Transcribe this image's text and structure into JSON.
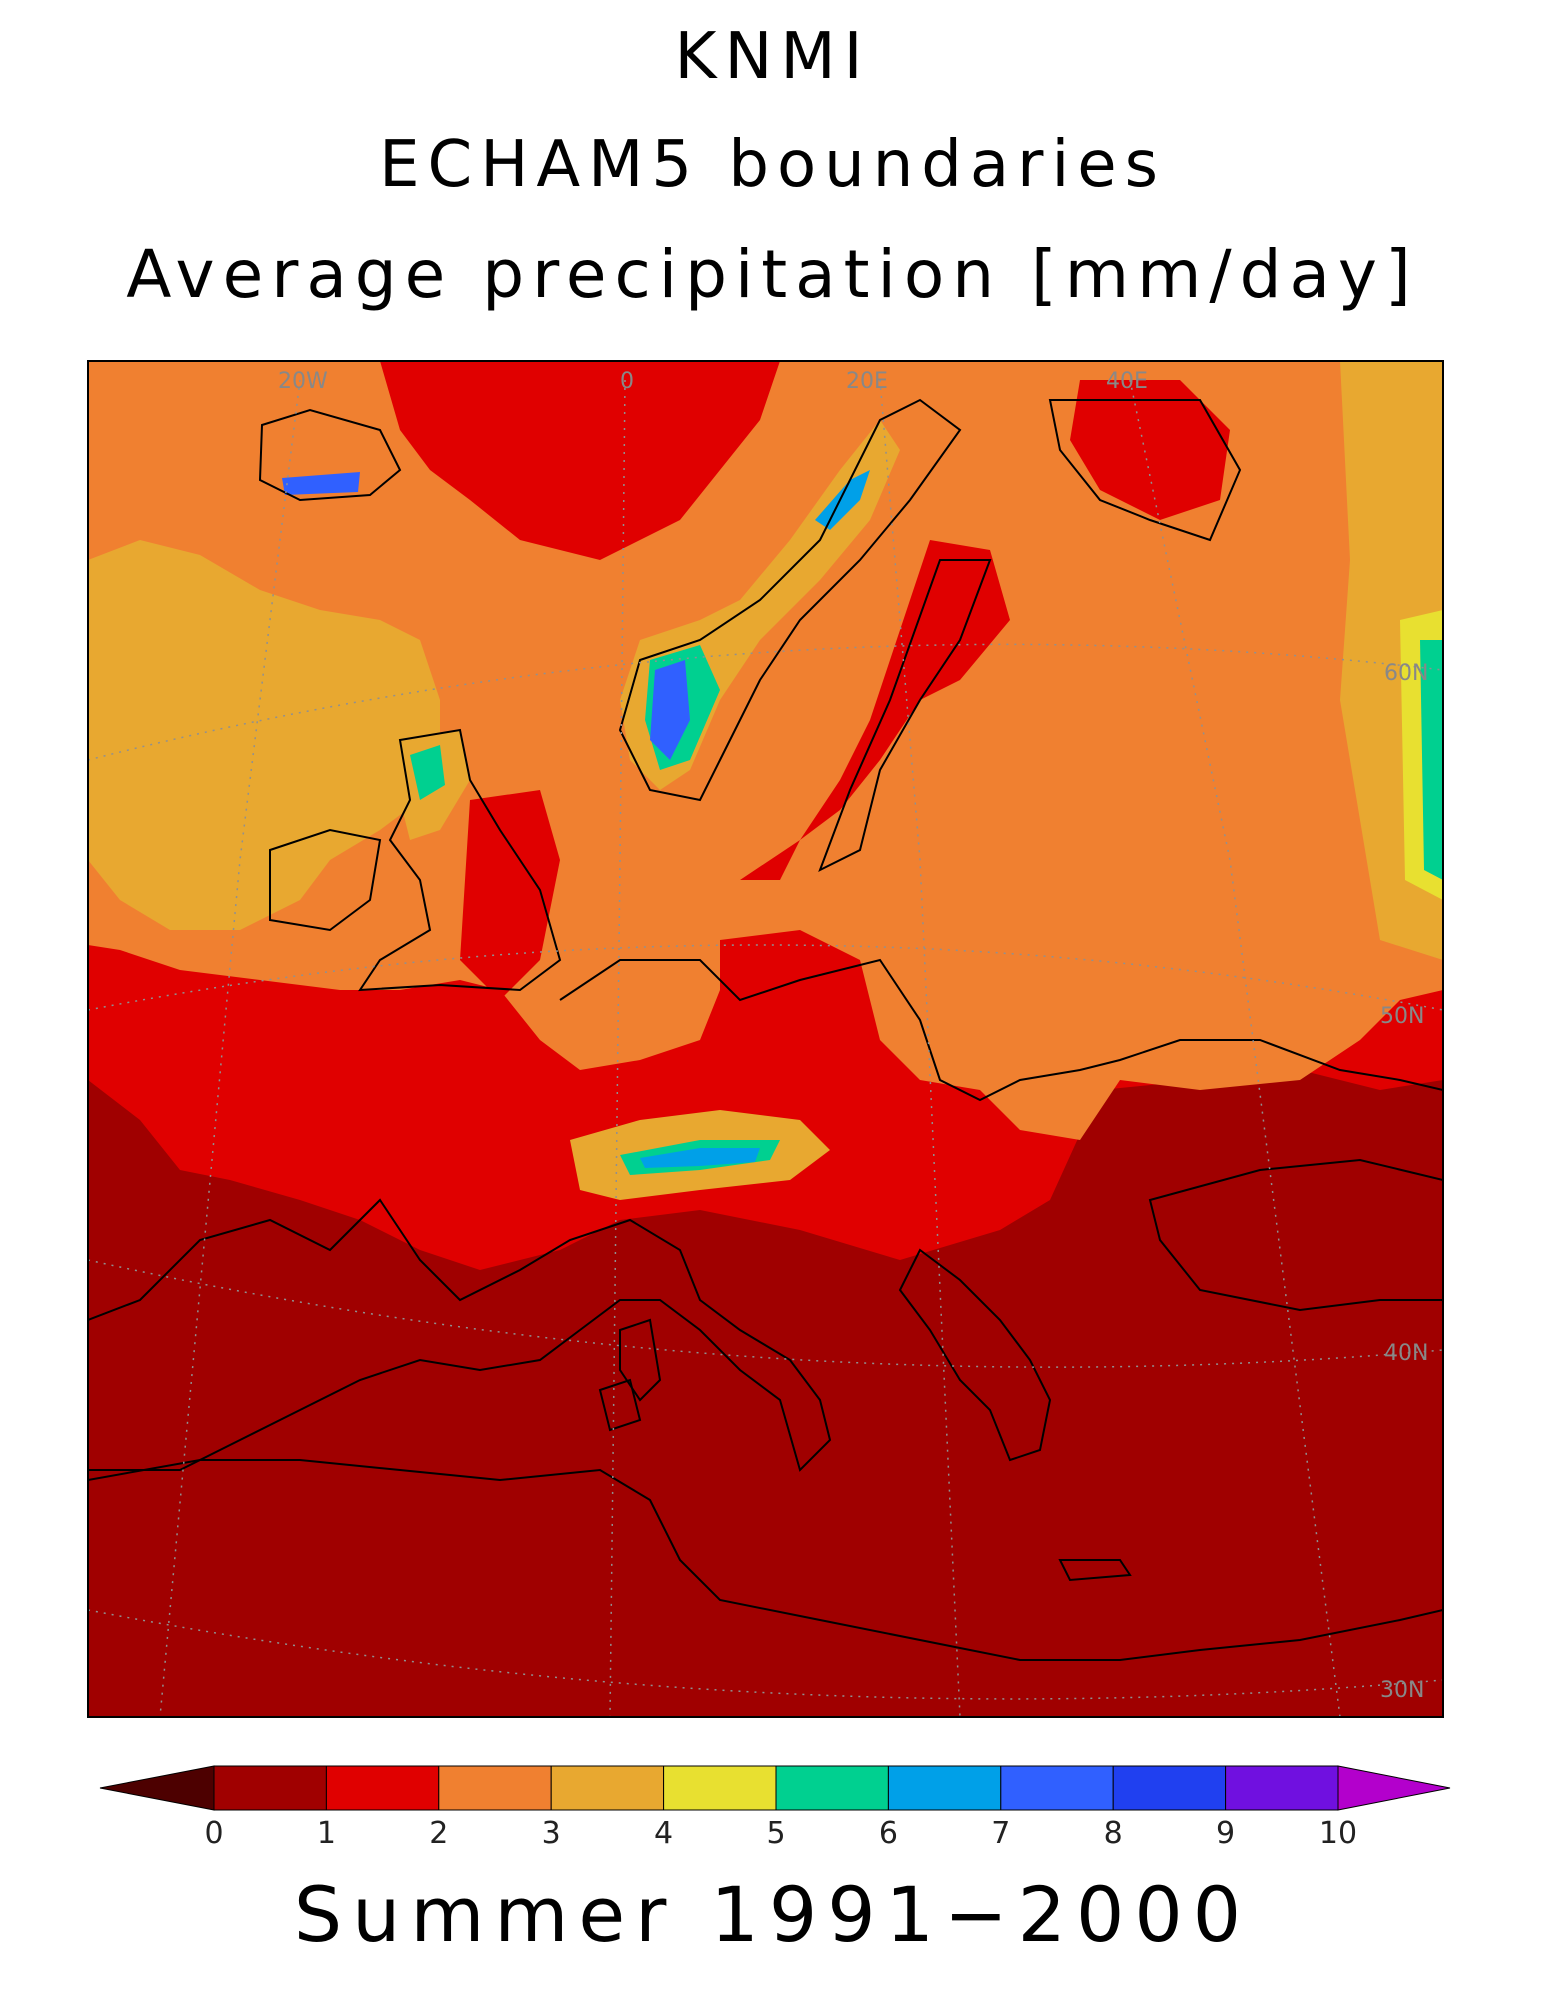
{
  "titles": {
    "line1": "KNMI",
    "line2": "ECHAM5 boundaries",
    "line3": "Average precipitation [mm/day]"
  },
  "bottom_title": "Summer 1991−2000",
  "colorbar": {
    "tick_labels": [
      "0",
      "1",
      "2",
      "3",
      "4",
      "5",
      "6",
      "7",
      "8",
      "9",
      "10"
    ],
    "under_color": "#4d0000",
    "over_color": "#b300cc",
    "colors": [
      "#a00000",
      "#e00000",
      "#f08030",
      "#e8a830",
      "#e8e030",
      "#00d090",
      "#00a0e8",
      "#3060ff",
      "#2040f0",
      "#7010e0"
    ]
  },
  "map": {
    "region": "Europe",
    "graticule_labels": [
      "20W",
      "0",
      "20E",
      "40E",
      "60N",
      "50N",
      "40N",
      "30N"
    ],
    "dominant_colors": {
      "sea_south": "#a00000",
      "mid": "#e00000",
      "north": "#f08030",
      "atlantic": "#e8a830"
    }
  }
}
